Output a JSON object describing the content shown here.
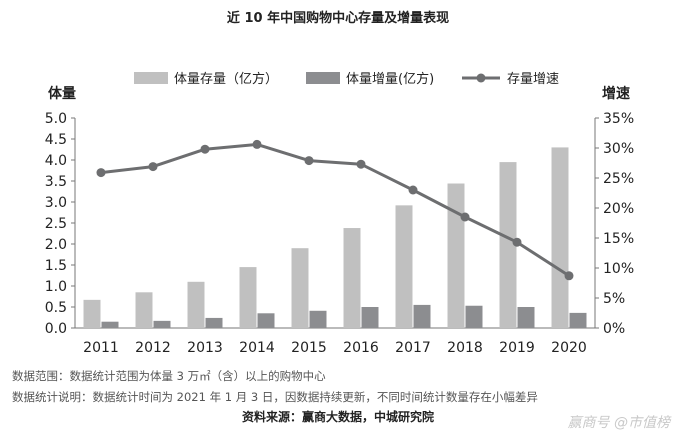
{
  "chart_data": {
    "type": "bar",
    "title": "近 10 年中国购物中心存量及增量表现",
    "categories": [
      "2011",
      "2012",
      "2013",
      "2014",
      "2015",
      "2016",
      "2017",
      "2018",
      "2019",
      "2020"
    ],
    "series": [
      {
        "name": "体量存量（亿方）",
        "type": "bar",
        "axis": "left",
        "color": "#c0c0c0",
        "values": [
          0.67,
          0.85,
          1.1,
          1.45,
          1.9,
          2.38,
          2.92,
          3.44,
          3.95,
          4.3
        ]
      },
      {
        "name": "体量增量(亿方)",
        "type": "bar",
        "axis": "left",
        "color": "#8c8d90",
        "values": [
          0.15,
          0.17,
          0.24,
          0.35,
          0.41,
          0.5,
          0.55,
          0.53,
          0.5,
          0.36
        ]
      },
      {
        "name": "存量增速",
        "type": "line",
        "axis": "right",
        "color": "#6d6e70",
        "values": [
          0.259,
          0.269,
          0.298,
          0.306,
          0.279,
          0.273,
          0.23,
          0.185,
          0.143,
          0.087
        ]
      }
    ],
    "ylabel_left": "体量",
    "ylabel_right": "增速",
    "ylim_left": [
      0,
      5
    ],
    "yticks_left": [
      "0.0",
      "0.5",
      "1.0",
      "1.5",
      "2.0",
      "2.5",
      "3.0",
      "3.5",
      "4.0",
      "4.5",
      "5.0"
    ],
    "ylim_right": [
      0,
      0.35
    ],
    "yticks_right": [
      "0%",
      "5%",
      "10%",
      "15%",
      "20%",
      "25%",
      "30%",
      "35%"
    ],
    "grid": false,
    "legend_position": "top"
  },
  "notes": {
    "scope": "数据范围：数据统计范围为体量 3 万㎡（含）以上的购物中心",
    "explain": "数据统计说明：数据统计时间为 2021 年 1 月 3 日，因数据持续更新，不同时间统计数量存在小幅差异",
    "source": "资料来源：赢商大数据，中城研究院"
  },
  "watermark": "赢商号 @市值榜"
}
